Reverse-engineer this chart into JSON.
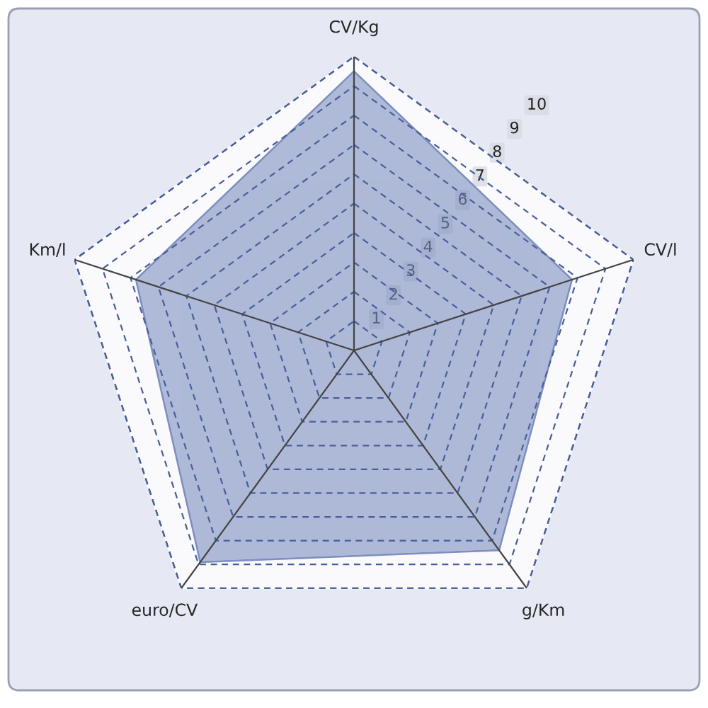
{
  "chart_data": {
    "type": "radar",
    "categories": [
      "CV/Kg",
      "CV/l",
      "g/Km",
      "euro/CV",
      "Km/l"
    ],
    "series": [
      {
        "color": "#7d8fc0",
        "values": [
          9.5,
          7.8,
          8.4,
          8.9,
          7.8
        ]
      }
    ],
    "ylim": [
      0,
      10
    ],
    "yticks": [
      1,
      2,
      3,
      4,
      5,
      6,
      7,
      8,
      9,
      10
    ],
    "grid": true
  }
}
